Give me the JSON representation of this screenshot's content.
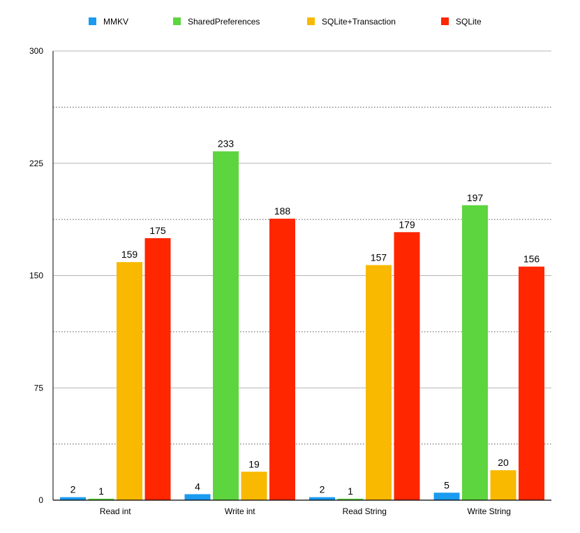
{
  "chart_data": {
    "type": "bar",
    "categories": [
      "Read int",
      "Write int",
      "Read String",
      "Write String"
    ],
    "series": [
      {
        "name": "MMKV",
        "color": "#1a9bf0",
        "values": [
          2,
          4,
          2,
          5
        ]
      },
      {
        "name": "SharedPreferences",
        "color": "#5dd53e",
        "values": [
          1,
          233,
          1,
          197
        ]
      },
      {
        "name": "SQLite+Transaction",
        "color": "#f8b900",
        "values": [
          159,
          19,
          157,
          20
        ]
      },
      {
        "name": "SQLite",
        "color": "#ff2600",
        "values": [
          175,
          188,
          179,
          156
        ]
      }
    ],
    "y_ticks": [
      0,
      75,
      150,
      225,
      300
    ],
    "ylim": [
      0,
      300
    ],
    "minor_gridlines": [
      37.5,
      112.5,
      187.5,
      262.5
    ],
    "legend_position": "top",
    "grid": true
  }
}
